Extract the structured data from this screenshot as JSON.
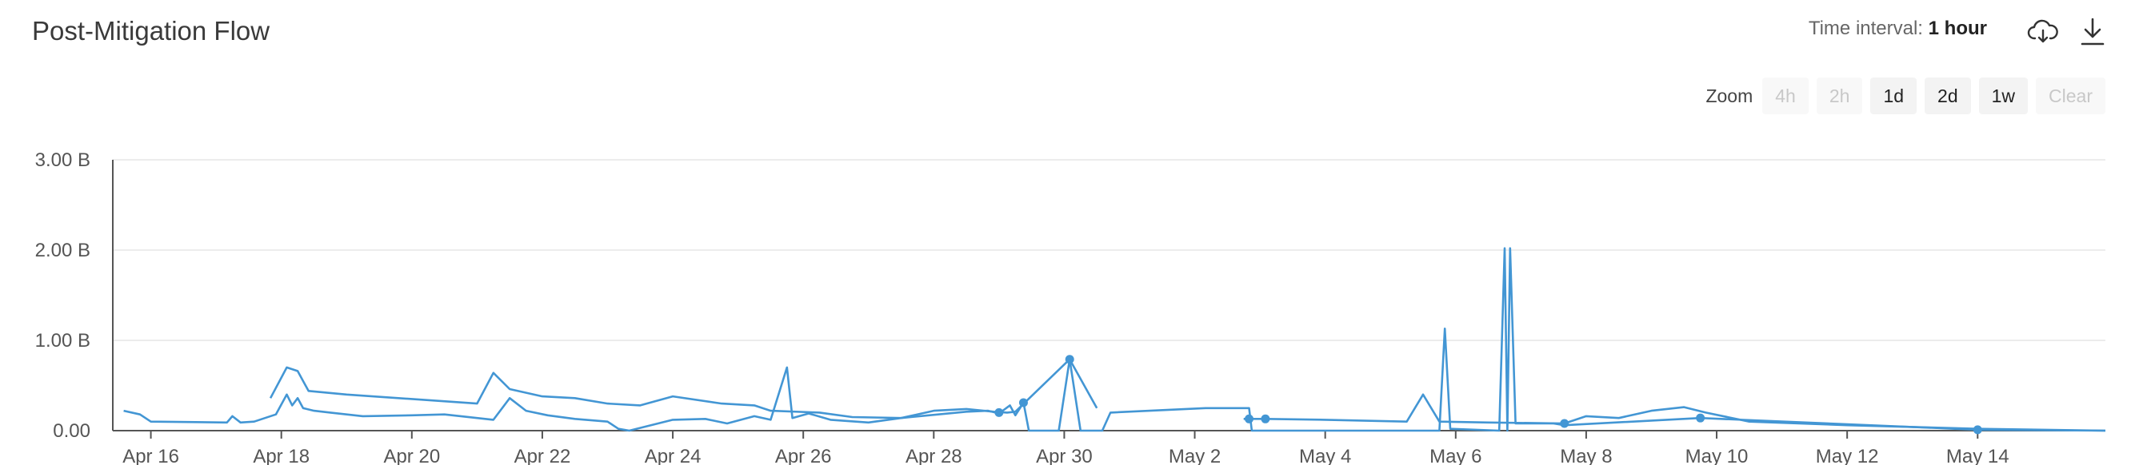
{
  "header": {
    "title": "Post-Mitigation Flow",
    "interval_label": "Time interval:",
    "interval_value": "1 hour"
  },
  "toolbar": {
    "cloud_icon": "cloud-download-icon",
    "download_icon": "download-icon"
  },
  "zoom": {
    "label": "Zoom",
    "buttons": [
      {
        "label": "4h",
        "enabled": false
      },
      {
        "label": "2h",
        "enabled": false
      },
      {
        "label": "1d",
        "enabled": true
      },
      {
        "label": "2d",
        "enabled": true
      },
      {
        "label": "1w",
        "enabled": true
      },
      {
        "label": "Clear",
        "enabled": false
      }
    ]
  },
  "colors": {
    "series": "#4396d4",
    "grid": "#e6e6e6",
    "axis": "#555555"
  },
  "chart_data": {
    "type": "line",
    "title": "Post-Mitigation Flow",
    "xlabel": "",
    "ylabel": "",
    "ylim": [
      0,
      3
    ],
    "yunit": "B",
    "yticks": [
      0,
      1,
      2,
      3
    ],
    "ytick_labels": [
      "0.00",
      "1.00 B",
      "2.00 B",
      "3.00 B"
    ],
    "xlim": [
      "2024-04-15T10:00",
      "2024-05-15T23:00"
    ],
    "xticks": [
      "Apr 16",
      "Apr 18",
      "Apr 20",
      "Apr 22",
      "Apr 24",
      "Apr 26",
      "Apr 28",
      "Apr 30",
      "May 2",
      "May 4",
      "May 6",
      "May 8",
      "May 10",
      "May 12",
      "May 14"
    ],
    "xtick_dates": [
      "2024-04-16",
      "2024-04-18",
      "2024-04-20",
      "2024-04-22",
      "2024-04-24",
      "2024-04-26",
      "2024-04-28",
      "2024-04-30",
      "2024-05-02",
      "2024-05-04",
      "2024-05-06",
      "2024-05-08",
      "2024-05-10",
      "2024-05-12",
      "2024-05-14"
    ],
    "grid": true,
    "series": [
      {
        "points": [
          [
            "2024-04-15T14:00",
            0.22
          ],
          [
            "2024-04-15T20:00",
            0.18
          ],
          [
            "2024-04-16T00:00",
            0.1
          ],
          [
            "2024-04-17T04:00",
            0.09
          ],
          [
            "2024-04-17T06:00",
            0.16
          ],
          [
            "2024-04-17T09:00",
            0.09
          ],
          [
            "2024-04-17T14:00",
            0.1
          ],
          [
            "2024-04-17T22:00",
            0.18
          ],
          [
            "2024-04-18T02:00",
            0.4
          ],
          [
            "2024-04-18T04:00",
            0.28
          ],
          [
            "2024-04-18T06:00",
            0.36
          ],
          [
            "2024-04-18T08:00",
            0.25
          ],
          [
            "2024-04-18T12:00",
            0.22
          ],
          [
            "2024-04-18T18:00",
            0.2
          ],
          [
            "2024-04-19T00:00",
            0.18
          ],
          [
            "2024-04-19T06:00",
            0.16
          ],
          [
            "2024-04-20T00:00",
            0.17
          ],
          [
            "2024-04-20T12:00",
            0.18
          ],
          [
            "2024-04-21T06:00",
            0.12
          ],
          [
            "2024-04-21T12:00",
            0.36
          ],
          [
            "2024-04-21T18:00",
            0.22
          ],
          [
            "2024-04-22T02:00",
            0.17
          ],
          [
            "2024-04-22T12:00",
            0.13
          ],
          [
            "2024-04-23T00:00",
            0.1
          ],
          [
            "2024-04-23T04:00",
            0.02
          ],
          [
            "2024-04-23T08:00",
            0.0
          ],
          [
            "2024-04-24T00:00",
            0.12
          ],
          [
            "2024-04-24T12:00",
            0.13
          ],
          [
            "2024-04-24T20:00",
            0.08
          ],
          [
            "2024-04-25T06:00",
            0.16
          ],
          [
            "2024-04-25T12:00",
            0.12
          ],
          [
            "2024-04-25T18:00",
            0.7
          ],
          [
            "2024-04-25T20:00",
            0.14
          ],
          [
            "2024-04-26T02:00",
            0.19
          ],
          [
            "2024-04-26T10:00",
            0.12
          ],
          [
            "2024-04-27T00:00",
            0.09
          ],
          [
            "2024-04-27T12:00",
            0.14
          ],
          [
            "2024-04-28T12:00",
            0.21
          ],
          [
            "2024-04-28T20:00",
            0.22
          ],
          [
            "2024-04-29T00:00",
            0.19
          ],
          [
            "2024-04-29T04:00",
            0.28
          ],
          [
            "2024-04-29T06:00",
            0.17
          ],
          [
            "2024-04-29T09:00",
            0.31
          ],
          [
            "2024-04-29T11:00",
            0.0
          ],
          [
            "2024-04-29T22:00",
            0.0
          ],
          [
            "2024-04-30T02:00",
            0.79
          ],
          [
            "2024-04-30T06:00",
            0.0
          ],
          [
            "2024-04-30T14:00",
            0.0
          ],
          [
            "2024-04-30T17:00",
            0.2
          ],
          [
            "2024-05-02T04:00",
            0.25
          ],
          [
            "2024-05-02T20:00",
            0.25
          ],
          [
            "2024-05-02T21:00",
            0.0
          ],
          [
            "2024-05-05T18:00",
            0.0
          ],
          [
            "2024-05-05T20:00",
            1.13
          ],
          [
            "2024-05-05T22:00",
            0.02
          ],
          [
            "2024-05-06T16:00",
            0.0
          ],
          [
            "2024-05-06T18:00",
            2.02
          ],
          [
            "2024-05-06T19:00",
            0.0
          ],
          [
            "2024-05-06T20:00",
            2.02
          ],
          [
            "2024-05-06T22:00",
            0.08
          ],
          [
            "2024-05-07T12:00",
            0.08
          ],
          [
            "2024-05-07T16:00",
            0.06
          ],
          [
            "2024-05-09T18:00",
            0.14
          ],
          [
            "2024-05-14T00:00",
            0.01
          ],
          [
            "2024-05-15T23:00",
            0.0
          ]
        ]
      },
      {
        "points": [
          [
            "2024-04-17T20:00",
            0.36
          ],
          [
            "2024-04-18T02:00",
            0.7
          ],
          [
            "2024-04-18T06:00",
            0.66
          ],
          [
            "2024-04-18T10:00",
            0.44
          ],
          [
            "2024-04-19T00:00",
            0.4
          ],
          [
            "2024-04-21T00:00",
            0.3
          ],
          [
            "2024-04-21T06:00",
            0.64
          ],
          [
            "2024-04-21T12:00",
            0.46
          ],
          [
            "2024-04-22T00:00",
            0.38
          ],
          [
            "2024-04-22T12:00",
            0.36
          ],
          [
            "2024-04-23T00:00",
            0.3
          ],
          [
            "2024-04-23T12:00",
            0.28
          ],
          [
            "2024-04-24T00:00",
            0.38
          ],
          [
            "2024-04-24T18:00",
            0.3
          ],
          [
            "2024-04-25T06:00",
            0.28
          ],
          [
            "2024-04-25T12:00",
            0.22
          ],
          [
            "2024-04-26T06:00",
            0.2
          ],
          [
            "2024-04-26T18:00",
            0.15
          ],
          [
            "2024-04-27T12:00",
            0.14
          ],
          [
            "2024-04-28T00:00",
            0.22
          ],
          [
            "2024-04-28T12:00",
            0.24
          ],
          [
            "2024-04-28T22:00",
            0.21
          ],
          [
            "2024-04-29T03:00",
            0.2
          ],
          [
            "2024-04-29T06:00",
            0.21
          ],
          [
            "2024-04-30T02:00",
            0.79
          ],
          [
            "2024-04-30T12:00",
            0.25
          ]
        ]
      },
      {
        "points": [
          [
            "2024-05-02T18:00",
            0.13
          ],
          [
            "2024-05-03T02:00",
            0.13
          ],
          [
            "2024-05-04T00:00",
            0.12
          ],
          [
            "2024-05-05T06:00",
            0.1
          ],
          [
            "2024-05-05T12:00",
            0.4
          ],
          [
            "2024-05-05T18:00",
            0.1
          ],
          [
            "2024-05-06T12:00",
            0.09
          ],
          [
            "2024-05-07T16:00",
            0.08
          ],
          [
            "2024-05-08T00:00",
            0.16
          ],
          [
            "2024-05-08T12:00",
            0.14
          ],
          [
            "2024-05-09T00:00",
            0.22
          ],
          [
            "2024-05-09T12:00",
            0.26
          ],
          [
            "2024-05-09T20:00",
            0.2
          ],
          [
            "2024-05-10T12:00",
            0.1
          ],
          [
            "2024-05-12T00:00",
            0.06
          ],
          [
            "2024-05-14T00:00",
            0.02
          ],
          [
            "2024-05-15T23:00",
            0.0
          ]
        ]
      }
    ],
    "markers": [
      [
        "2024-04-29T00:00",
        0.2
      ],
      [
        "2024-04-29T09:00",
        0.31
      ],
      [
        "2024-04-30T02:00",
        0.79
      ],
      [
        "2024-05-02T20:00",
        0.13
      ],
      [
        "2024-05-03T02:00",
        0.13
      ],
      [
        "2024-05-07T16:00",
        0.08
      ],
      [
        "2024-05-09T18:00",
        0.14
      ],
      [
        "2024-05-14T00:00",
        0.01
      ]
    ]
  }
}
